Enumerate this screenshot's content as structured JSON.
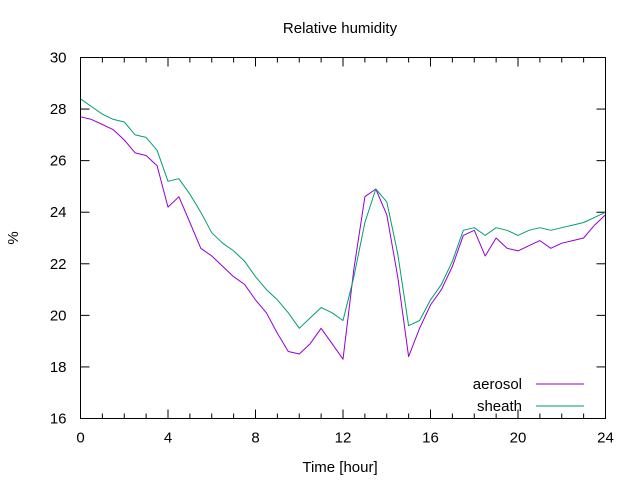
{
  "chart_data": {
    "type": "line",
    "title": "Relative humidity",
    "xlabel": "Time [hour]",
    "ylabel": "%",
    "xlim": [
      0,
      24
    ],
    "ylim": [
      16,
      30
    ],
    "xticks": [
      0,
      4,
      8,
      12,
      16,
      20,
      24
    ],
    "yticks": [
      16,
      18,
      20,
      22,
      24,
      26,
      28,
      30
    ],
    "grid": false,
    "legend_position": "bottom-right",
    "series": [
      {
        "name": "aerosol",
        "color": "#9400d3",
        "x": [
          0,
          0.5,
          1,
          1.5,
          2,
          2.5,
          3,
          3.5,
          4,
          4.5,
          5,
          5.5,
          6,
          6.5,
          7,
          7.5,
          8,
          8.5,
          9,
          9.5,
          10,
          10.5,
          11,
          11.5,
          12,
          12.5,
          13,
          13.5,
          14,
          14.5,
          15,
          15.5,
          16,
          16.5,
          17,
          17.5,
          18,
          18.5,
          19,
          19.5,
          20,
          20.5,
          21,
          21.5,
          22,
          22.5,
          23,
          23.5,
          24
        ],
        "values": [
          27.7,
          27.6,
          27.4,
          27.2,
          26.8,
          26.3,
          26.2,
          25.8,
          24.2,
          24.6,
          23.6,
          22.6,
          22.3,
          21.9,
          21.5,
          21.2,
          20.6,
          20.1,
          19.3,
          18.6,
          18.5,
          18.9,
          19.5,
          18.9,
          18.3,
          21.8,
          24.6,
          24.9,
          23.9,
          21.5,
          18.4,
          19.5,
          20.4,
          21.0,
          21.9,
          23.1,
          23.3,
          22.3,
          23.0,
          22.6,
          22.5,
          22.7,
          22.9,
          22.6,
          22.8,
          22.9,
          23.0,
          23.5,
          23.9
        ]
      },
      {
        "name": "sheath",
        "color": "#009e73",
        "x": [
          0,
          0.5,
          1,
          1.5,
          2,
          2.5,
          3,
          3.5,
          4,
          4.5,
          5,
          5.5,
          6,
          6.5,
          7,
          7.5,
          8,
          8.5,
          9,
          9.5,
          10,
          10.5,
          11,
          11.5,
          12,
          12.5,
          13,
          13.5,
          14,
          14.5,
          15,
          15.5,
          16,
          16.5,
          17,
          17.5,
          18,
          18.5,
          19,
          19.5,
          20,
          20.5,
          21,
          21.5,
          22,
          22.5,
          23,
          23.5,
          24
        ],
        "values": [
          28.4,
          28.1,
          27.8,
          27.6,
          27.5,
          27.0,
          26.9,
          26.4,
          25.2,
          25.3,
          24.7,
          24.0,
          23.2,
          22.8,
          22.5,
          22.1,
          21.5,
          21.0,
          20.6,
          20.1,
          19.5,
          19.9,
          20.3,
          20.1,
          19.8,
          21.5,
          23.6,
          24.9,
          24.4,
          22.4,
          19.6,
          19.8,
          20.6,
          21.2,
          22.1,
          23.3,
          23.4,
          23.1,
          23.4,
          23.3,
          23.1,
          23.3,
          23.4,
          23.3,
          23.4,
          23.5,
          23.6,
          23.8,
          24.0
        ]
      }
    ]
  }
}
